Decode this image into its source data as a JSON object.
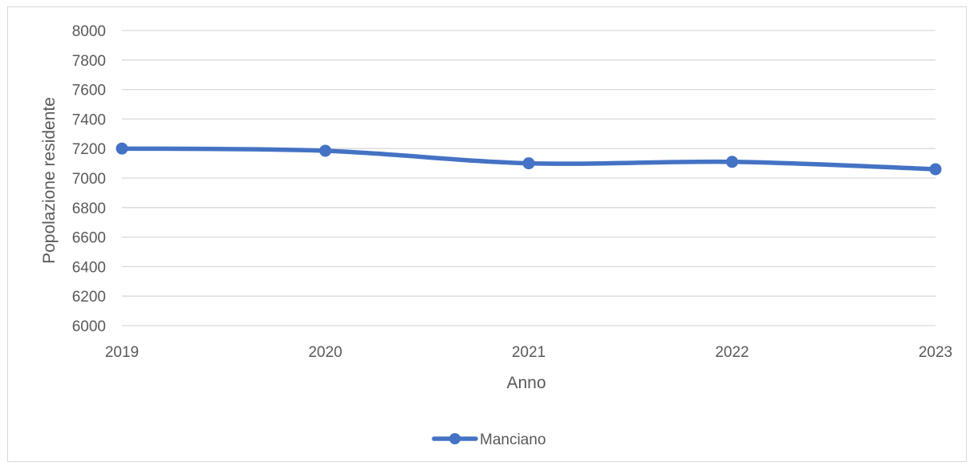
{
  "chart_data": {
    "type": "line",
    "title": "",
    "xlabel": "Anno",
    "ylabel": "Popolazione residente",
    "categories": [
      "2019",
      "2020",
      "2021",
      "2022",
      "2023"
    ],
    "series": [
      {
        "name": "Manciano",
        "values": [
          7200,
          7185,
          7100,
          7110,
          7060
        ],
        "color": "#4472c4"
      }
    ],
    "ylim": [
      6000,
      8000
    ],
    "yticks": [
      6000,
      6200,
      6400,
      6600,
      6800,
      7000,
      7200,
      7400,
      7600,
      7800,
      8000
    ],
    "grid": "horizontal",
    "smooth": true,
    "legend": "bottom-center"
  }
}
